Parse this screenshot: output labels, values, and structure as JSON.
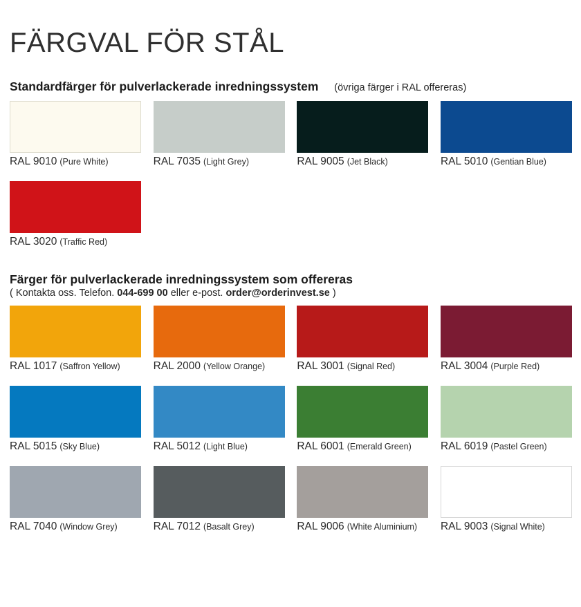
{
  "page": {
    "title": "FÄRGVAL FÖR STÅL",
    "background_color": "#FFFFFF",
    "text_color": "#2B2B2B"
  },
  "sections": [
    {
      "heading": "Standardfärger för pulverlackerade inredningssystem",
      "note": "(övriga färger i RAL offereras)",
      "swatches": [
        {
          "code": "RAL 9010",
          "name": "(Pure White)",
          "hex": "#FDFAEF",
          "border": "#DEDCCE"
        },
        {
          "code": "RAL 7035",
          "name": "(Light Grey)",
          "hex": "#C6CDC9"
        },
        {
          "code": "RAL 9005",
          "name": "(Jet Black)",
          "hex": "#061D1C"
        },
        {
          "code": "RAL 5010",
          "name": "(Gentian Blue)",
          "hex": "#0C4A90"
        },
        {
          "code": "RAL 3020",
          "name": "(Traffic Red)",
          "hex": "#D01318"
        }
      ]
    },
    {
      "heading": "Färger för pulverlackerade inredningssystem som offereras",
      "contact": {
        "prefix": "( Kontakta oss. Telefon. ",
        "phone": "044-699 00",
        "middle": " eller e-post. ",
        "email": "order@orderinvest.se",
        "suffix": " )"
      },
      "swatches": [
        {
          "code": "RAL 1017",
          "name": "(Saffron Yellow)",
          "hex": "#F2A50B"
        },
        {
          "code": "RAL 2000",
          "name": "(Yellow Orange)",
          "hex": "#E76A0D"
        },
        {
          "code": "RAL 3001",
          "name": "(Signal Red)",
          "hex": "#B71A19"
        },
        {
          "code": "RAL 3004",
          "name": "(Purple Red)",
          "hex": "#7B1B33"
        },
        {
          "code": "RAL 5015",
          "name": "(Sky Blue)",
          "hex": "#0579BF"
        },
        {
          "code": "RAL 5012",
          "name": "(Light Blue)",
          "hex": "#3389C5"
        },
        {
          "code": "RAL 6001",
          "name": "(Emerald Green)",
          "hex": "#3B7E33"
        },
        {
          "code": "RAL 6019",
          "name": "(Pastel Green)",
          "hex": "#B5D3AE"
        },
        {
          "code": "RAL 7040",
          "name": "(Window Grey)",
          "hex": "#9FA7B0"
        },
        {
          "code": "RAL 7012",
          "name": "(Basalt Grey)",
          "hex": "#565C5E"
        },
        {
          "code": "RAL 9006",
          "name": "(White Aluminium)",
          "hex": "#A49F9C"
        },
        {
          "code": "RAL 9003",
          "name": "(Signal White)",
          "hex": "#FFFFFF",
          "border": "#D6D6D6"
        }
      ]
    }
  ]
}
